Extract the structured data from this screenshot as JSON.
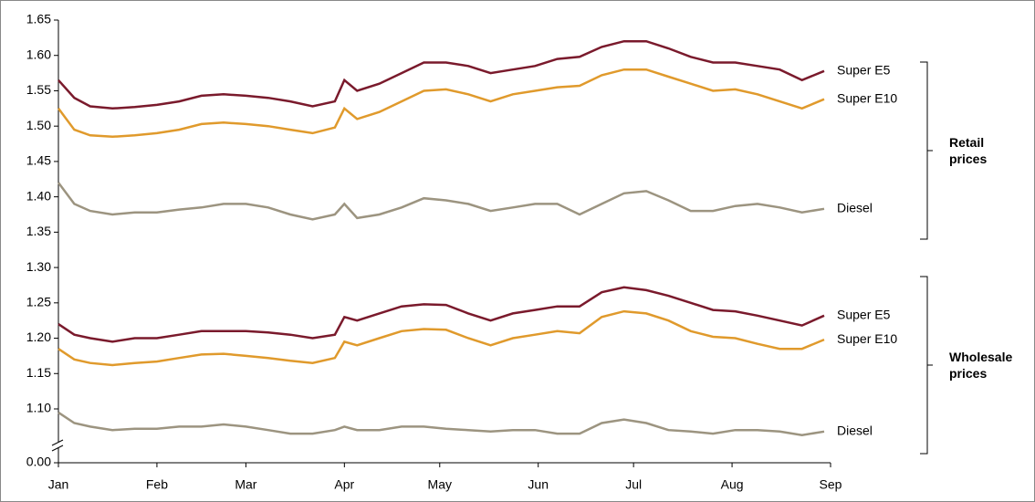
{
  "chart_data": {
    "type": "line",
    "x": [
      0,
      5,
      10,
      17,
      24,
      31,
      38,
      45,
      52,
      59,
      66,
      73,
      80,
      87,
      90,
      94,
      101,
      108,
      115,
      122,
      129,
      136,
      143,
      150,
      157,
      164,
      171,
      178,
      185,
      192,
      199,
      206,
      213,
      220,
      227,
      234,
      241
    ],
    "xlim": [
      0,
      243
    ],
    "xticks": [
      {
        "value": 0,
        "label": "Jan"
      },
      {
        "value": 31,
        "label": "Feb"
      },
      {
        "value": 59,
        "label": "Mar"
      },
      {
        "value": 90,
        "label": "Apr"
      },
      {
        "value": 120,
        "label": "May"
      },
      {
        "value": 151,
        "label": "Jun"
      },
      {
        "value": 181,
        "label": "Jul"
      },
      {
        "value": 212,
        "label": "Aug"
      },
      {
        "value": 243,
        "label": "Sep"
      }
    ],
    "ylim": [
      0,
      1.65
    ],
    "yticks": [
      {
        "value": 0,
        "label": "0.00"
      },
      {
        "value": 1.1,
        "label": "1.10"
      },
      {
        "value": 1.15,
        "label": "1.15"
      },
      {
        "value": 1.2,
        "label": "1.20"
      },
      {
        "value": 1.25,
        "label": "1.25"
      },
      {
        "value": 1.3,
        "label": "1.30"
      },
      {
        "value": 1.35,
        "label": "1.35"
      },
      {
        "value": 1.4,
        "label": "1.40"
      },
      {
        "value": 1.45,
        "label": "1.45"
      },
      {
        "value": 1.5,
        "label": "1.50"
      },
      {
        "value": 1.55,
        "label": "1.55"
      },
      {
        "value": 1.6,
        "label": "1.60"
      },
      {
        "value": 1.65,
        "label": "1.65"
      }
    ],
    "axis_break": true,
    "groups": [
      {
        "label": "Retail prices",
        "series": [
          {
            "name": "Super E5",
            "color": "#7a1a2c",
            "values": [
              1.565,
              1.54,
              1.528,
              1.525,
              1.527,
              1.53,
              1.535,
              1.543,
              1.545,
              1.543,
              1.54,
              1.535,
              1.528,
              1.535,
              1.565,
              1.55,
              1.56,
              1.575,
              1.59,
              1.59,
              1.585,
              1.575,
              1.58,
              1.585,
              1.595,
              1.598,
              1.612,
              1.62,
              1.62,
              1.61,
              1.598,
              1.59,
              1.59,
              1.585,
              1.58,
              1.565,
              1.578
            ]
          },
          {
            "name": "Super E10",
            "color": "#e09a2c",
            "values": [
              1.525,
              1.495,
              1.487,
              1.485,
              1.487,
              1.49,
              1.495,
              1.503,
              1.505,
              1.503,
              1.5,
              1.495,
              1.49,
              1.498,
              1.525,
              1.51,
              1.52,
              1.535,
              1.55,
              1.552,
              1.545,
              1.535,
              1.545,
              1.55,
              1.555,
              1.557,
              1.572,
              1.58,
              1.58,
              1.57,
              1.56,
              1.55,
              1.552,
              1.545,
              1.535,
              1.525,
              1.538
            ]
          },
          {
            "name": "Diesel",
            "color": "#9c9480",
            "values": [
              1.42,
              1.39,
              1.38,
              1.375,
              1.378,
              1.378,
              1.382,
              1.385,
              1.39,
              1.39,
              1.385,
              1.375,
              1.368,
              1.375,
              1.39,
              1.37,
              1.375,
              1.385,
              1.398,
              1.395,
              1.39,
              1.38,
              1.385,
              1.39,
              1.39,
              1.375,
              1.39,
              1.405,
              1.408,
              1.395,
              1.38,
              1.38,
              1.387,
              1.39,
              1.385,
              1.378,
              1.383
            ]
          }
        ]
      },
      {
        "label": "Wholesale prices",
        "series": [
          {
            "name": "Super E5",
            "color": "#7a1a2c",
            "values": [
              1.22,
              1.205,
              1.2,
              1.195,
              1.2,
              1.2,
              1.205,
              1.21,
              1.21,
              1.21,
              1.208,
              1.205,
              1.2,
              1.205,
              1.23,
              1.225,
              1.235,
              1.245,
              1.248,
              1.247,
              1.235,
              1.225,
              1.235,
              1.24,
              1.245,
              1.245,
              1.265,
              1.272,
              1.268,
              1.26,
              1.25,
              1.24,
              1.238,
              1.232,
              1.225,
              1.218,
              1.232
            ]
          },
          {
            "name": "Super E10",
            "color": "#e09a2c",
            "values": [
              1.185,
              1.17,
              1.165,
              1.162,
              1.165,
              1.167,
              1.172,
              1.177,
              1.178,
              1.175,
              1.172,
              1.168,
              1.165,
              1.172,
              1.195,
              1.19,
              1.2,
              1.21,
              1.213,
              1.212,
              1.2,
              1.19,
              1.2,
              1.205,
              1.21,
              1.207,
              1.23,
              1.238,
              1.235,
              1.225,
              1.21,
              1.202,
              1.2,
              1.192,
              1.185,
              1.185,
              1.198
            ]
          },
          {
            "name": "Diesel",
            "color": "#9c9480",
            "values": [
              1.095,
              1.08,
              1.075,
              1.07,
              1.072,
              1.072,
              1.075,
              1.075,
              1.078,
              1.075,
              1.07,
              1.065,
              1.065,
              1.07,
              1.075,
              1.07,
              1.07,
              1.075,
              1.075,
              1.072,
              1.07,
              1.068,
              1.07,
              1.07,
              1.065,
              1.065,
              1.08,
              1.085,
              1.08,
              1.07,
              1.068,
              1.065,
              1.07,
              1.07,
              1.068,
              1.063,
              1.068
            ]
          }
        ]
      }
    ]
  }
}
